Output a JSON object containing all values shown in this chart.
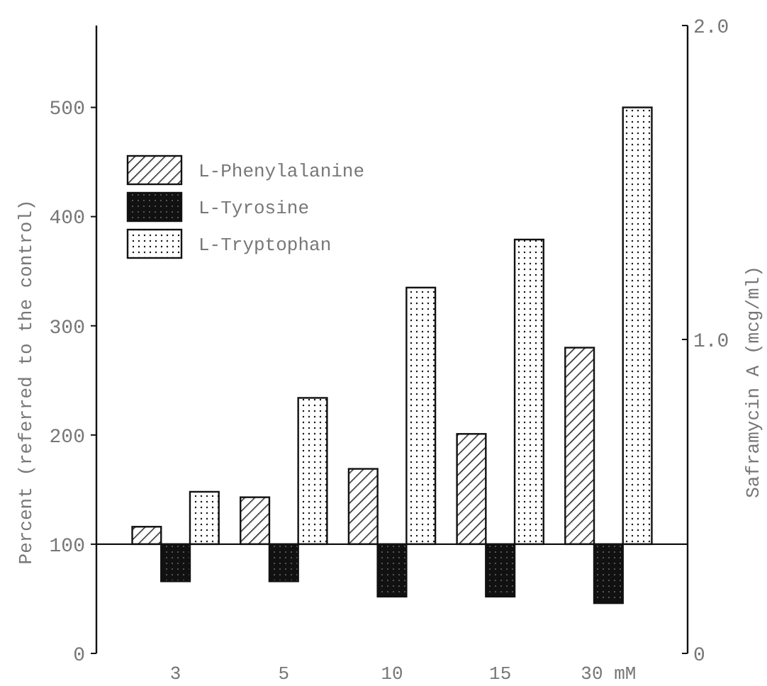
{
  "chart_data": {
    "type": "bar",
    "categories": [
      "3",
      "5",
      "10",
      "15",
      "30 mM"
    ],
    "ylabel": "Percent (referred to the control)",
    "y2label": "Saframycin A (mcg/ml)",
    "ylim": [
      0,
      575
    ],
    "yticks": [
      0,
      100,
      200,
      300,
      400,
      500
    ],
    "y2lim": [
      0,
      2.0
    ],
    "y2ticks": [
      0,
      {
        "value": 1,
        "label": "1.0"
      },
      {
        "value": 2,
        "label": "2.0"
      }
    ],
    "legend": "top left",
    "ref_lines": [
      {
        "axis": "y",
        "value": 100,
        "color": "#111111"
      }
    ],
    "series": [
      {
        "name": "L-Phenylalanine",
        "color": "#111111",
        "base": [
          100,
          100,
          100,
          100,
          100
        ],
        "values": [
          16,
          43,
          69,
          101,
          180
        ]
      },
      {
        "name": "L-Tyrosine",
        "color": "#111111",
        "base": [
          100,
          100,
          100,
          100,
          100
        ],
        "values": [
          -34,
          -34,
          -48,
          -48,
          -54
        ]
      },
      {
        "name": "L-Tryptophan",
        "color": "#111111",
        "base": [
          100,
          100,
          100,
          100,
          100
        ],
        "values": [
          48,
          134,
          235,
          279,
          400
        ]
      }
    ]
  }
}
